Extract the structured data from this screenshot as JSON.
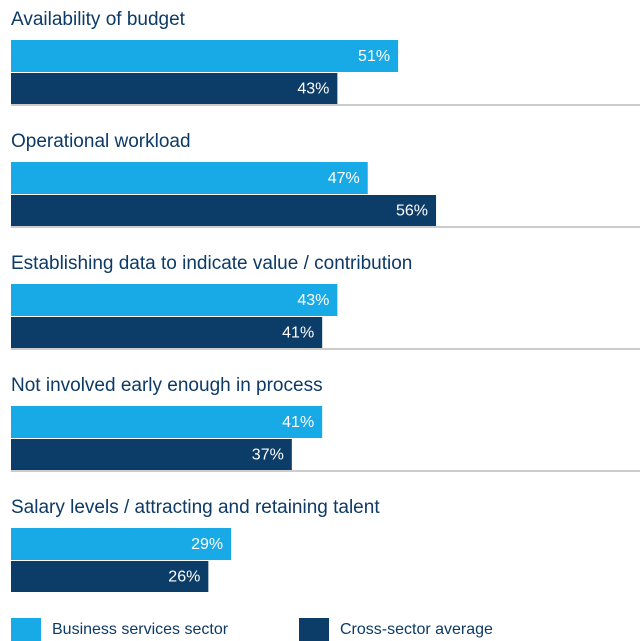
{
  "chart_data": {
    "type": "bar",
    "orientation": "horizontal",
    "categories": [
      "Availability of budget",
      "Operational workload",
      "Establishing data to indicate value / contribution",
      "Not involved early enough in process",
      "Salary levels / attracting and retaining talent"
    ],
    "series": [
      {
        "name": "Business services sector",
        "color": "#18aae6",
        "values": [
          51,
          47,
          43,
          41,
          29
        ],
        "value_labels": [
          "51%",
          "47%",
          "43%",
          "41%",
          "29%"
        ]
      },
      {
        "name": "Cross-sector average",
        "color": "#0c3d68",
        "values": [
          43,
          56,
          41,
          37,
          26
        ],
        "value_labels": [
          "43%",
          "56%",
          "41%",
          "37%",
          "26%"
        ]
      }
    ]
  }
}
